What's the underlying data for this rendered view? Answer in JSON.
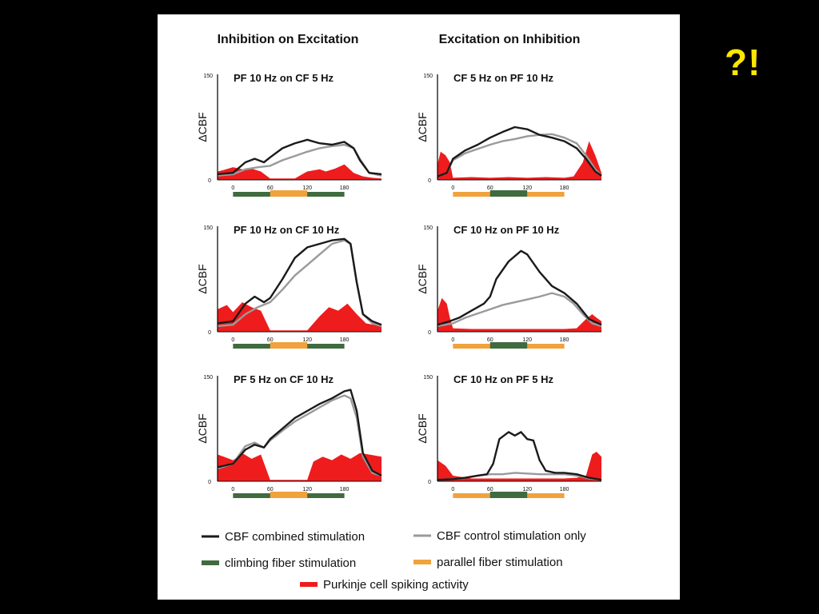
{
  "slide": {
    "corner_mark": "?!"
  },
  "figure": {
    "column_titles": [
      "Inhibition on Excitation",
      "Excitation on Inhibition"
    ],
    "legend": [
      {
        "label": "CBF combined stimulation",
        "color": "#1a1a1a",
        "swatch": "black-line"
      },
      {
        "label": "CBF control stimulation only",
        "color": "#9a9a9a",
        "swatch": "gray-line"
      },
      {
        "label": "climbing fiber stimulation",
        "color": "#3f6b3f",
        "swatch": "green-bar"
      },
      {
        "label": "parallel fiber stimulation",
        "color": "#f0a23c",
        "swatch": "orange-bar"
      },
      {
        "label": "Purkinje cell spiking activity",
        "color": "#ee1c1c",
        "swatch": "red-bar"
      }
    ]
  },
  "chart_data": [
    {
      "type": "line",
      "title": "PF 10 Hz on CF 5 Hz",
      "ylabel": "ΔCBF",
      "y_ticks": [
        "0",
        "150"
      ],
      "x_ticks": [
        "0",
        "60",
        "120",
        "180"
      ],
      "ylim": [
        0,
        150
      ],
      "xlim": [
        -25,
        240
      ],
      "series": [
        {
          "name": "CBF combined stimulation",
          "color": "#1a1a1a",
          "x": [
            -25,
            0,
            20,
            35,
            50,
            60,
            80,
            100,
            120,
            140,
            160,
            180,
            195,
            205,
            220,
            240
          ],
          "y": [
            8,
            10,
            25,
            30,
            25,
            32,
            45,
            52,
            57,
            52,
            50,
            54,
            45,
            28,
            10,
            8
          ]
        },
        {
          "name": "CBF control stimulation only",
          "color": "#9a9a9a",
          "x": [
            -25,
            0,
            20,
            40,
            60,
            80,
            100,
            120,
            140,
            160,
            180,
            195,
            205,
            220,
            240
          ],
          "y": [
            6,
            8,
            15,
            18,
            20,
            28,
            34,
            40,
            45,
            48,
            50,
            45,
            30,
            10,
            6
          ]
        }
      ],
      "spiking_activity": {
        "name": "Purkinje cell spiking activity",
        "color": "#ee1c1c",
        "x": [
          -25,
          -15,
          0,
          15,
          30,
          45,
          60,
          80,
          100,
          120,
          140,
          150,
          165,
          180,
          195,
          210,
          225,
          240
        ],
        "y": [
          12,
          14,
          18,
          15,
          16,
          12,
          2,
          2,
          2,
          12,
          15,
          12,
          16,
          22,
          10,
          5,
          3,
          2
        ]
      },
      "stimulation": [
        {
          "name": "climbing fiber stimulation",
          "color": "#3f6b3f",
          "start": 0,
          "end": 180
        },
        {
          "name": "parallel fiber stimulation",
          "color": "#f0a23c",
          "start": 60,
          "end": 120
        }
      ]
    },
    {
      "type": "line",
      "title": "CF 5 Hz on PF 10 Hz",
      "ylabel": "ΔCBF",
      "y_ticks": [
        "0",
        "150"
      ],
      "x_ticks": [
        "0",
        "60",
        "120",
        "180"
      ],
      "ylim": [
        0,
        150
      ],
      "xlim": [
        -25,
        240
      ],
      "series": [
        {
          "name": "CBF combined stimulation",
          "color": "#1a1a1a",
          "x": [
            -25,
            -10,
            0,
            20,
            40,
            60,
            80,
            100,
            120,
            140,
            160,
            180,
            200,
            215,
            230,
            240
          ],
          "y": [
            5,
            10,
            30,
            42,
            50,
            60,
            68,
            75,
            72,
            64,
            60,
            55,
            45,
            30,
            12,
            6
          ]
        },
        {
          "name": "CBF control stimulation only",
          "color": "#9a9a9a",
          "x": [
            -25,
            -10,
            0,
            20,
            40,
            60,
            80,
            100,
            120,
            140,
            160,
            180,
            200,
            215,
            230,
            240
          ],
          "y": [
            5,
            10,
            28,
            38,
            44,
            50,
            55,
            58,
            62,
            64,
            65,
            60,
            52,
            35,
            15,
            6
          ]
        }
      ],
      "spiking_activity": {
        "name": "Purkinje cell spiking activity",
        "color": "#ee1c1c",
        "x": [
          -25,
          -20,
          -12,
          -5,
          0,
          30,
          60,
          90,
          120,
          150,
          180,
          195,
          210,
          220,
          230,
          240
        ],
        "y": [
          22,
          40,
          35,
          25,
          3,
          4,
          3,
          4,
          3,
          4,
          3,
          5,
          25,
          55,
          35,
          10
        ]
      },
      "stimulation": [
        {
          "name": "parallel fiber stimulation",
          "color": "#f0a23c",
          "start": 0,
          "end": 180
        },
        {
          "name": "climbing fiber stimulation",
          "color": "#3f6b3f",
          "start": 60,
          "end": 120
        }
      ]
    },
    {
      "type": "line",
      "title": "PF 10 Hz on CF 10 Hz",
      "ylabel": "ΔCBF",
      "y_ticks": [
        "0",
        "150"
      ],
      "x_ticks": [
        "0",
        "60",
        "120",
        "180"
      ],
      "ylim": [
        0,
        150
      ],
      "xlim": [
        -25,
        240
      ],
      "series": [
        {
          "name": "CBF combined stimulation",
          "color": "#1a1a1a",
          "x": [
            -25,
            0,
            20,
            35,
            50,
            60,
            80,
            100,
            120,
            140,
            160,
            180,
            190,
            200,
            210,
            225,
            240
          ],
          "y": [
            12,
            15,
            40,
            50,
            42,
            48,
            75,
            105,
            120,
            125,
            130,
            132,
            125,
            70,
            25,
            15,
            10
          ]
        },
        {
          "name": "CBF control stimulation only",
          "color": "#9a9a9a",
          "x": [
            -25,
            0,
            20,
            40,
            60,
            80,
            100,
            120,
            140,
            160,
            180,
            190,
            200,
            210,
            225,
            240
          ],
          "y": [
            8,
            10,
            25,
            35,
            42,
            60,
            80,
            95,
            110,
            125,
            130,
            125,
            70,
            25,
            12,
            8
          ]
        }
      ],
      "spiking_activity": {
        "name": "Purkinje cell spiking activity",
        "color": "#ee1c1c",
        "x": [
          -25,
          -10,
          0,
          15,
          30,
          45,
          60,
          80,
          100,
          120,
          140,
          155,
          170,
          185,
          200,
          215,
          240
        ],
        "y": [
          32,
          38,
          28,
          42,
          35,
          30,
          2,
          2,
          2,
          2,
          22,
          35,
          30,
          40,
          25,
          12,
          8
        ]
      },
      "stimulation": [
        {
          "name": "climbing fiber stimulation",
          "color": "#3f6b3f",
          "start": 0,
          "end": 180
        },
        {
          "name": "parallel fiber stimulation",
          "color": "#f0a23c",
          "start": 60,
          "end": 120
        }
      ]
    },
    {
      "type": "line",
      "title": "CF 10 Hz on PF 10 Hz",
      "ylabel": "ΔCBF",
      "y_ticks": [
        "0",
        "150"
      ],
      "x_ticks": [
        "0",
        "60",
        "120",
        "180"
      ],
      "ylim": [
        0,
        150
      ],
      "xlim": [
        -25,
        240
      ],
      "series": [
        {
          "name": "CBF combined stimulation",
          "color": "#1a1a1a",
          "x": [
            -25,
            -5,
            10,
            30,
            50,
            60,
            70,
            90,
            110,
            120,
            140,
            160,
            180,
            200,
            220,
            240
          ],
          "y": [
            10,
            15,
            20,
            30,
            40,
            50,
            75,
            100,
            115,
            110,
            85,
            65,
            55,
            40,
            18,
            10
          ]
        },
        {
          "name": "CBF control stimulation only",
          "color": "#9a9a9a",
          "x": [
            -25,
            0,
            20,
            40,
            60,
            80,
            100,
            120,
            140,
            160,
            180,
            195,
            210,
            225,
            240
          ],
          "y": [
            8,
            12,
            20,
            26,
            32,
            38,
            42,
            46,
            50,
            55,
            50,
            40,
            25,
            12,
            8
          ]
        }
      ],
      "spiking_activity": {
        "name": "Purkinje cell spiking activity",
        "color": "#ee1c1c",
        "x": [
          -25,
          -18,
          -10,
          -5,
          0,
          30,
          60,
          90,
          120,
          150,
          180,
          200,
          215,
          225,
          232,
          240
        ],
        "y": [
          30,
          48,
          40,
          20,
          5,
          4,
          4,
          4,
          4,
          4,
          4,
          5,
          18,
          25,
          20,
          15
        ]
      },
      "stimulation": [
        {
          "name": "parallel fiber stimulation",
          "color": "#f0a23c",
          "start": 0,
          "end": 180
        },
        {
          "name": "climbing fiber stimulation",
          "color": "#3f6b3f",
          "start": 60,
          "end": 120
        }
      ]
    },
    {
      "type": "line",
      "title": "PF 5 Hz on CF 10 Hz",
      "ylabel": "ΔCBF",
      "y_ticks": [
        "0",
        "150"
      ],
      "x_ticks": [
        "0",
        "60",
        "120",
        "180"
      ],
      "ylim": [
        0,
        150
      ],
      "xlim": [
        -25,
        240
      ],
      "series": [
        {
          "name": "CBF combined stimulation",
          "color": "#1a1a1a",
          "x": [
            -25,
            0,
            20,
            35,
            50,
            60,
            80,
            100,
            120,
            140,
            160,
            180,
            190,
            200,
            210,
            225,
            240
          ],
          "y": [
            20,
            25,
            45,
            52,
            48,
            60,
            75,
            90,
            100,
            110,
            118,
            128,
            130,
            100,
            40,
            15,
            8
          ]
        },
        {
          "name": "CBF control stimulation only",
          "color": "#9a9a9a",
          "x": [
            -25,
            0,
            20,
            35,
            50,
            60,
            80,
            100,
            120,
            140,
            160,
            180,
            190,
            200,
            210,
            225,
            240
          ],
          "y": [
            18,
            25,
            50,
            55,
            48,
            58,
            72,
            85,
            95,
            105,
            115,
            122,
            118,
            90,
            35,
            12,
            8
          ]
        }
      ],
      "spiking_activity": {
        "name": "Purkinje cell spiking activity",
        "color": "#ee1c1c",
        "x": [
          -25,
          -15,
          0,
          15,
          30,
          45,
          60,
          80,
          100,
          120,
          130,
          145,
          160,
          175,
          190,
          205,
          220,
          240
        ],
        "y": [
          38,
          35,
          30,
          40,
          32,
          38,
          2,
          2,
          2,
          2,
          28,
          35,
          30,
          38,
          32,
          40,
          38,
          35
        ]
      },
      "stimulation": [
        {
          "name": "climbing fiber stimulation",
          "color": "#3f6b3f",
          "start": 0,
          "end": 180
        },
        {
          "name": "parallel fiber stimulation",
          "color": "#f0a23c",
          "start": 60,
          "end": 120
        }
      ]
    },
    {
      "type": "line",
      "title": "CF 10 Hz on PF 5 Hz",
      "ylabel": "ΔCBF",
      "y_ticks": [
        "0",
        "150"
      ],
      "x_ticks": [
        "0",
        "60",
        "120",
        "180"
      ],
      "ylim": [
        0,
        150
      ],
      "xlim": [
        -25,
        240
      ],
      "series": [
        {
          "name": "CBF combined stimulation",
          "color": "#1a1a1a",
          "x": [
            -25,
            0,
            20,
            40,
            55,
            65,
            75,
            90,
            100,
            110,
            120,
            130,
            140,
            150,
            165,
            180,
            200,
            220,
            240
          ],
          "y": [
            2,
            3,
            5,
            8,
            10,
            25,
            60,
            70,
            65,
            70,
            60,
            58,
            30,
            15,
            12,
            12,
            10,
            5,
            2
          ]
        },
        {
          "name": "CBF control stimulation only",
          "color": "#9a9a9a",
          "x": [
            -25,
            0,
            20,
            40,
            60,
            80,
            100,
            120,
            140,
            160,
            180,
            200,
            220,
            240
          ],
          "y": [
            2,
            3,
            5,
            8,
            10,
            10,
            12,
            11,
            10,
            10,
            10,
            8,
            4,
            2
          ]
        }
      ],
      "spiking_activity": {
        "name": "Purkinje cell spiking activity",
        "color": "#ee1c1c",
        "x": [
          -25,
          -12,
          0,
          30,
          60,
          90,
          120,
          150,
          180,
          200,
          215,
          225,
          232,
          240
        ],
        "y": [
          30,
          22,
          8,
          4,
          4,
          4,
          4,
          4,
          4,
          5,
          8,
          38,
          42,
          35
        ]
      },
      "stimulation": [
        {
          "name": "parallel fiber stimulation",
          "color": "#f0a23c",
          "start": 0,
          "end": 180
        },
        {
          "name": "climbing fiber stimulation",
          "color": "#3f6b3f",
          "start": 60,
          "end": 120
        }
      ]
    }
  ]
}
